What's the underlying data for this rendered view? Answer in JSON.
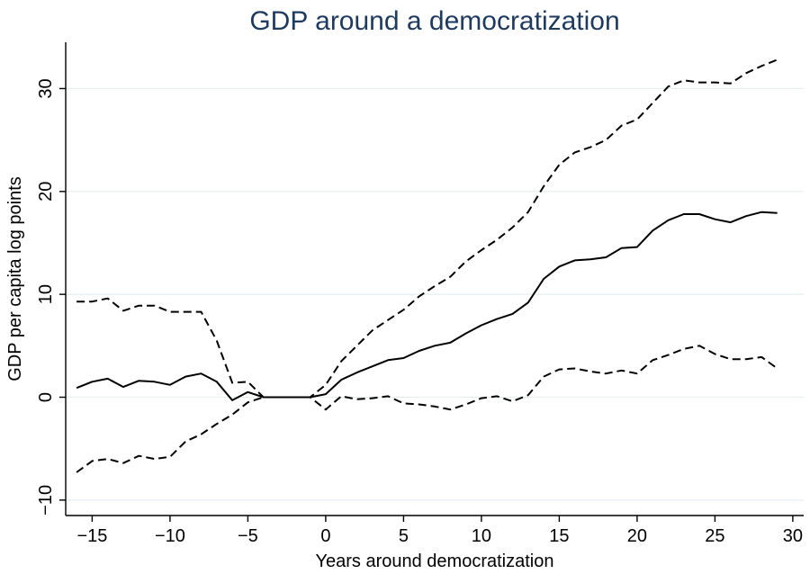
{
  "chart_data": {
    "type": "line",
    "title": "GDP around a democratization",
    "xlabel": "Years around democratization",
    "ylabel": "GDP per capita log points",
    "xlim": [
      -16.7,
      30.7
    ],
    "ylim": [
      -11.5,
      34.5
    ],
    "x_ticks": [
      -15,
      -10,
      -5,
      0,
      5,
      10,
      15,
      20,
      25,
      30
    ],
    "x_tick_labels": [
      "−15",
      "−10",
      "−5",
      "0",
      "5",
      "10",
      "15",
      "20",
      "25",
      "30"
    ],
    "y_ticks": [
      -10,
      0,
      10,
      20,
      30
    ],
    "y_tick_labels": [
      "−10",
      "0",
      "10",
      "20",
      "30"
    ],
    "grid": true,
    "legend": "none",
    "x": [
      -16,
      -15,
      -14,
      -13,
      -12,
      -11,
      -10,
      -9,
      -8,
      -7,
      -6,
      -5,
      -4,
      -3,
      -2,
      -1,
      0,
      1,
      2,
      3,
      4,
      5,
      6,
      7,
      8,
      9,
      10,
      11,
      12,
      13,
      14,
      15,
      16,
      17,
      18,
      19,
      20,
      21,
      22,
      23,
      24,
      25,
      26,
      27,
      28,
      29
    ],
    "series": [
      {
        "style": "solid",
        "values": [
          0.9,
          1.5,
          1.8,
          1.0,
          1.6,
          1.5,
          1.2,
          2.0,
          2.3,
          1.5,
          -0.3,
          0.5,
          0,
          0,
          0,
          0,
          0.3,
          1.7,
          2.4,
          3.0,
          3.6,
          3.8,
          4.5,
          5.0,
          5.3,
          6.2,
          7.0,
          7.6,
          8.1,
          9.2,
          11.5,
          12.7,
          13.3,
          13.4,
          13.6,
          14.5,
          14.6,
          16.2,
          17.2,
          17.8,
          17.8,
          17.3,
          17.0,
          17.6,
          18.0,
          17.9
        ]
      },
      {
        "style": "dashed",
        "values": [
          9.3,
          9.3,
          9.6,
          8.4,
          8.9,
          8.9,
          8.3,
          8.3,
          8.3,
          5.5,
          1.4,
          1.5,
          0,
          0,
          0,
          0,
          1.2,
          3.5,
          5.0,
          6.5,
          7.5,
          8.5,
          9.8,
          10.8,
          11.7,
          13.2,
          14.3,
          15.3,
          16.5,
          18.0,
          20.5,
          22.6,
          23.8,
          24.3,
          25.0,
          26.4,
          27.0,
          28.6,
          30.2,
          30.8,
          30.6,
          30.6,
          30.5,
          31.5,
          32.2,
          32.8
        ]
      },
      {
        "style": "dashed",
        "values": [
          -7.3,
          -6.2,
          -6.0,
          -6.4,
          -5.7,
          -6.0,
          -5.8,
          -4.3,
          -3.6,
          -2.6,
          -1.7,
          -0.5,
          0,
          0,
          0,
          0,
          -1.2,
          0.1,
          -0.2,
          -0.1,
          0.1,
          -0.6,
          -0.7,
          -0.9,
          -1.2,
          -0.7,
          -0.1,
          0.1,
          -0.4,
          0.2,
          2.0,
          2.7,
          2.8,
          2.5,
          2.3,
          2.6,
          2.3,
          3.6,
          4.1,
          4.7,
          5.0,
          4.2,
          3.7,
          3.7,
          3.9,
          2.8
        ]
      }
    ]
  }
}
